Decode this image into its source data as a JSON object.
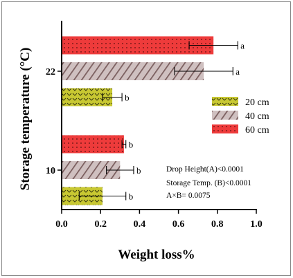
{
  "chart_data": {
    "type": "bar",
    "orientation": "horizontal",
    "xlabel": "Weight loss%",
    "ylabel": "Storage temperature (°C)",
    "xlim": [
      0.0,
      1.0
    ],
    "xticks": [
      "0.0",
      "0.2",
      "0.4",
      "0.6",
      "0.8",
      "1.0"
    ],
    "categories": [
      "10",
      "22"
    ],
    "series": [
      {
        "name": "20 cm",
        "color": "#c8c832",
        "pattern": "chevron",
        "values": [
          0.21,
          0.26
        ],
        "errors": [
          0.12,
          0.05
        ],
        "labels": [
          "b",
          "b"
        ]
      },
      {
        "name": "40 cm",
        "color": "#cfc0c0",
        "pattern": "diagonal-stripes",
        "values": [
          0.3,
          0.73
        ],
        "errors": [
          0.07,
          0.15
        ],
        "labels": [
          "b",
          "a"
        ]
      },
      {
        "name": "60 cm",
        "color": "#ee3b3b",
        "pattern": "dots",
        "values": [
          0.32,
          0.78
        ],
        "errors": [
          0.01,
          0.125
        ],
        "labels": [
          "b",
          "a"
        ]
      }
    ],
    "annotations": [
      "Drop Height(A)<0.0001",
      "Storage Temp. (B)<0.0001",
      "A×B= 0.0075"
    ],
    "legend_position": "right-middle",
    "grid": false
  }
}
